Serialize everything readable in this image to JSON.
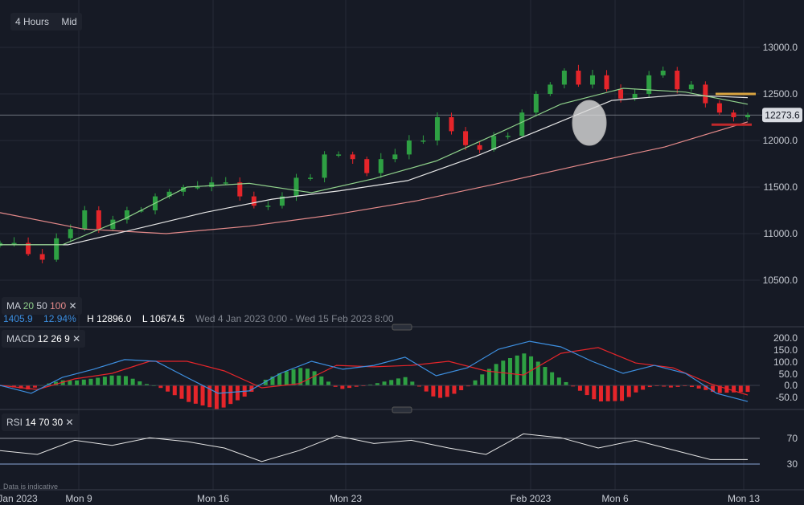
{
  "toolbar": {
    "interval": "4 Hours",
    "price_type": "Mid"
  },
  "ma_legend": {
    "label": "MA",
    "p1": "20",
    "p2": "50",
    "p3": "100",
    "close": "✕"
  },
  "stats": {
    "change": "1405.9",
    "change_pct": "12.94%",
    "high": "H 12896.0",
    "low": "L 10674.5",
    "range": "Wed 4 Jan 2023 0:00 - Wed 15 Feb 2023 8:00"
  },
  "macd_legend": {
    "label": "MACD",
    "p1": "12",
    "p2": "26",
    "p3": "9",
    "close": "✕"
  },
  "rsi_legend": {
    "label": "RSI",
    "p1": "14",
    "p2": "70",
    "p3": "30",
    "close": "✕"
  },
  "disclaimer": "Data is indicative",
  "colors": {
    "up": "#2ea043",
    "down": "#e5252a",
    "ma20": "#8fd18b",
    "ma50": "#e6e6e6",
    "ma100": "#e58a8a",
    "macd": "#3d8fe0",
    "signal": "#e5252a",
    "rsi": "#e6e6e6"
  },
  "chart_data": [
    {
      "type": "candlestick",
      "title": "",
      "ylim": [
        10300,
        13200
      ],
      "yticks": [
        "13000.0",
        "12500.0",
        "12000.0",
        "11500.0",
        "11000.0",
        "10500.0"
      ],
      "xticks": [
        "Jan 2023",
        "Mon 9",
        "Mon 16",
        "Mon 23",
        "Feb 2023",
        "Mon 6",
        "Mon 13"
      ],
      "last_price": "12273.6",
      "close": [
        10900,
        10900,
        10780,
        10720,
        10950,
        11050,
        11250,
        11050,
        11150,
        11250,
        11250,
        11400,
        11450,
        11500,
        11500,
        11550,
        11550,
        11400,
        11300,
        11300,
        11400,
        11600,
        11600,
        11850,
        11850,
        11800,
        11650,
        11800,
        11850,
        12000,
        12000,
        12250,
        12100,
        11950,
        11900,
        12050,
        12050,
        12300,
        12500,
        12600,
        12750,
        12600,
        12700,
        12550,
        12450,
        12500,
        12700,
        12750,
        12550,
        12600,
        12400,
        12300,
        12250,
        12273.6
      ],
      "ma20": [
        10880,
        10880,
        11160,
        11500,
        11540,
        11440,
        11590,
        11780,
        12080,
        12390,
        12560,
        12520,
        12390
      ],
      "ma50": [
        10880,
        10880,
        11050,
        11225,
        11370,
        11460,
        11570,
        11830,
        12130,
        12430,
        12490,
        12460
      ],
      "ma100": [
        11225,
        11050,
        11000,
        11080,
        11200,
        11350,
        11540,
        11740,
        11930,
        12200
      ],
      "annotations": {
        "resistance": 12500,
        "support": 12170
      }
    },
    {
      "type": "line",
      "name": "MACD",
      "ylim": [
        -80,
        230
      ],
      "yticks": [
        "200.0",
        "150.0",
        "100.0",
        "50.0",
        "0.0",
        "-50.0"
      ],
      "macd": [
        0,
        -33,
        33,
        67,
        107,
        100,
        33,
        -33,
        -23,
        50,
        100,
        67,
        83,
        117,
        40,
        73,
        150,
        183,
        160,
        100,
        50,
        83,
        50,
        -33,
        -67
      ],
      "signal": [
        0,
        -17,
        27,
        50,
        100,
        100,
        60,
        -10,
        7,
        83,
        77,
        83,
        100,
        60,
        43,
        133,
        157,
        93,
        73,
        7,
        -40
      ]
    },
    {
      "type": "line",
      "name": "RSI",
      "ylim": [
        20,
        85
      ],
      "yticks": [
        "70",
        "30"
      ],
      "rsi": [
        51,
        45,
        67,
        59,
        71,
        65,
        55,
        34,
        51,
        74,
        62,
        67,
        55,
        45,
        77,
        71,
        55,
        67,
        52,
        37,
        37
      ]
    }
  ]
}
